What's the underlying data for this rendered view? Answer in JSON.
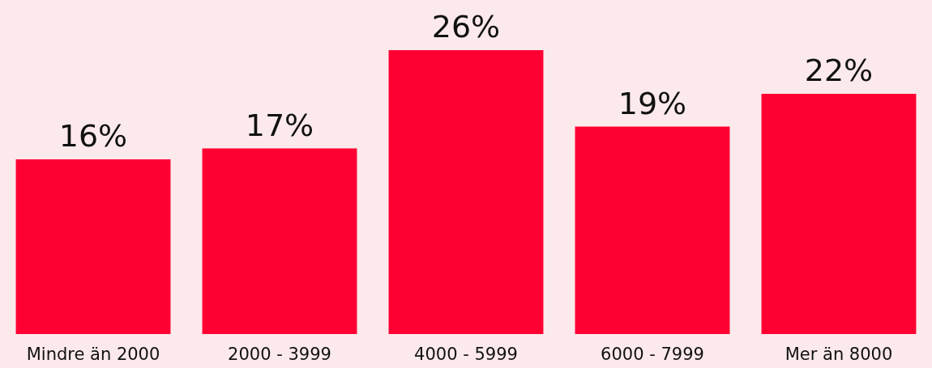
{
  "chart_data": {
    "type": "bar",
    "categories": [
      "Mindre än 2000",
      "2000 - 3999",
      "4000 - 5999",
      "6000 - 7999",
      "Mer än 8000"
    ],
    "values": [
      16,
      17,
      26,
      19,
      22
    ],
    "value_labels": [
      "16%",
      "17%",
      "26%",
      "19%",
      "22%"
    ],
    "color": "#ff0033"
  }
}
